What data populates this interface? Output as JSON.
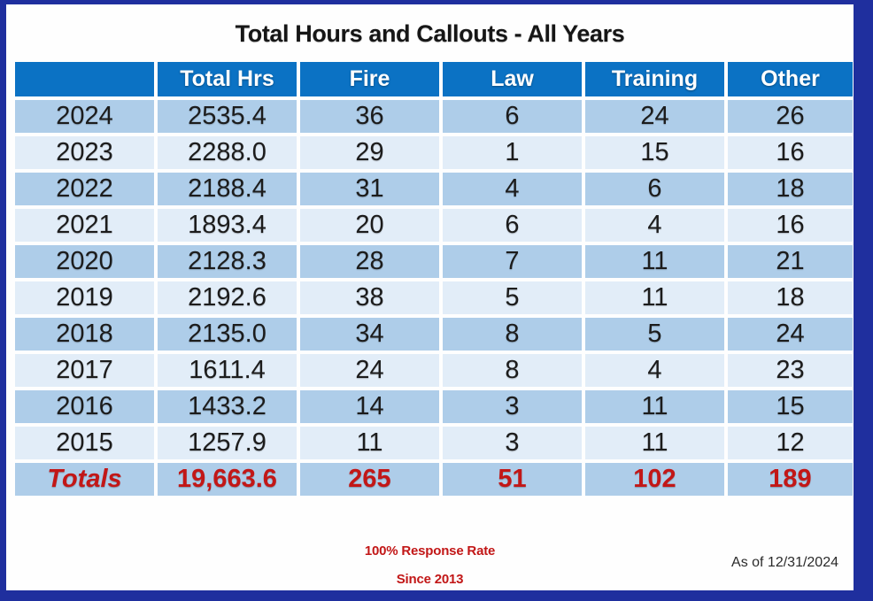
{
  "title": "Total Hours and Callouts - All Years",
  "table": {
    "columns": [
      "",
      "Total Hrs",
      "Fire",
      "Law",
      "Training",
      "Other"
    ],
    "rows": [
      {
        "year": "2024",
        "values": [
          "2535.4",
          "36",
          "6",
          "24",
          "26"
        ]
      },
      {
        "year": "2023",
        "values": [
          "2288.0",
          "29",
          "1",
          "15",
          "16"
        ]
      },
      {
        "year": "2022",
        "values": [
          "2188.4",
          "31",
          "4",
          "6",
          "18"
        ]
      },
      {
        "year": "2021",
        "values": [
          "1893.4",
          "20",
          "6",
          "4",
          "16"
        ]
      },
      {
        "year": "2020",
        "values": [
          "2128.3",
          "28",
          "7",
          "11",
          "21"
        ]
      },
      {
        "year": "2019",
        "values": [
          "2192.6",
          "38",
          "5",
          "11",
          "18"
        ]
      },
      {
        "year": "2018",
        "values": [
          "2135.0",
          "34",
          "8",
          "5",
          "24"
        ]
      },
      {
        "year": "2017",
        "values": [
          "1611.4",
          "24",
          "8",
          "4",
          "23"
        ]
      },
      {
        "year": "2016",
        "values": [
          "1433.2",
          "14",
          "3",
          "11",
          "15"
        ]
      },
      {
        "year": "2015",
        "values": [
          "1257.9",
          "11",
          "3",
          "11",
          "12"
        ]
      }
    ],
    "totals": {
      "label": "Totals",
      "values": [
        "19,663.6",
        "265",
        "51",
        "102",
        "189"
      ]
    }
  },
  "footer": {
    "response_rate": "100% Response Rate",
    "since": "Since 2013",
    "as_of": "As of 12/31/2024"
  },
  "colors": {
    "outer_border_navy": "#1F2F9E",
    "header_blue": "#0B72C4",
    "row_band_dark": "#AECDE9",
    "row_band_light": "#E2EDF8",
    "totals_red": "#C21717",
    "header_text": "#FFFFFF",
    "body_text": "#1C1C1C"
  },
  "chart_data": {
    "type": "table",
    "title": "Total Hours and Callouts - All Years",
    "categories": [
      "2024",
      "2023",
      "2022",
      "2021",
      "2020",
      "2019",
      "2018",
      "2017",
      "2016",
      "2015"
    ],
    "series": [
      {
        "name": "Total Hrs",
        "values": [
          2535.4,
          2288.0,
          2188.4,
          1893.4,
          2128.3,
          2192.6,
          2135.0,
          1611.4,
          1433.2,
          1257.9
        ],
        "total": 19663.6
      },
      {
        "name": "Fire",
        "values": [
          36,
          29,
          31,
          20,
          28,
          38,
          34,
          24,
          14,
          11
        ],
        "total": 265
      },
      {
        "name": "Law",
        "values": [
          6,
          1,
          4,
          6,
          7,
          5,
          8,
          8,
          3,
          3
        ],
        "total": 51
      },
      {
        "name": "Training",
        "values": [
          24,
          15,
          6,
          4,
          11,
          11,
          5,
          4,
          11,
          11
        ],
        "total": 102
      },
      {
        "name": "Other",
        "values": [
          26,
          16,
          18,
          16,
          21,
          18,
          24,
          23,
          15,
          12
        ],
        "total": 189
      }
    ],
    "annotations": [
      "100% Response Rate",
      "Since 2013",
      "As of 12/31/2024"
    ]
  }
}
